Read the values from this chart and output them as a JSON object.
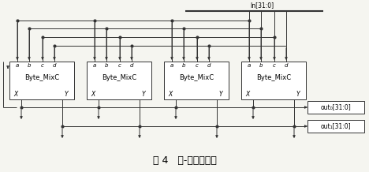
{
  "title": "图 4   字-列混合模块",
  "title_fontsize": 9,
  "fig_width": 4.68,
  "fig_height": 2.18,
  "dpi": 100,
  "background_color": "#f5f5f0",
  "box_color": "#000000",
  "line_color": "#333333",
  "in_bus_label": "In[31:0]",
  "out_labels": [
    "out₀[31:0]",
    "out₁[31:0]"
  ],
  "box_label": "Byte_MixC",
  "abcd": [
    "a",
    "b",
    "c",
    "d"
  ]
}
